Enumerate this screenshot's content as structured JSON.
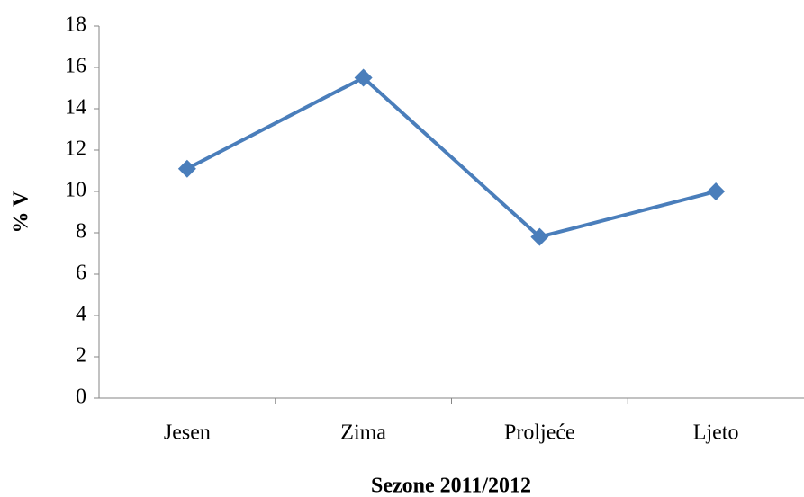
{
  "chart_data": {
    "type": "line",
    "x_label": "Sezone 2011/2012",
    "y_label": "% V",
    "categories": [
      "Jesen",
      "Zima",
      "Proljeće",
      "Ljeto"
    ],
    "series": [
      {
        "name": null,
        "color": "#4a7ebb",
        "values": [
          11.1,
          15.5,
          7.8,
          10.0
        ]
      }
    ],
    "ylim": [
      0,
      18
    ],
    "yticks": [
      0,
      2,
      4,
      6,
      8,
      10,
      12,
      14,
      16,
      18
    ],
    "grid": false
  }
}
